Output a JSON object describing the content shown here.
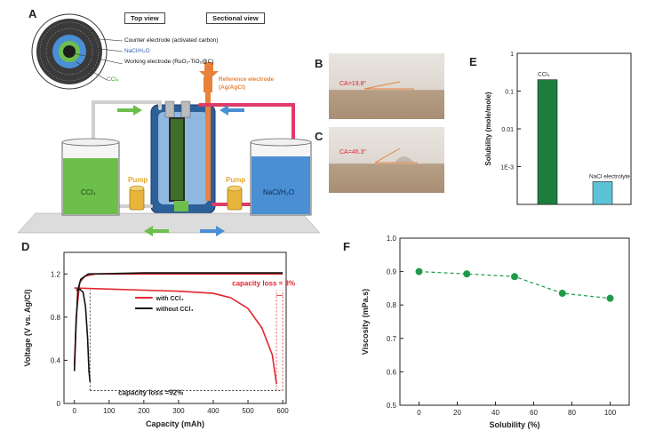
{
  "panels": {
    "A": "A",
    "B": "B",
    "C": "C",
    "D": "D",
    "E": "E",
    "F": "F"
  },
  "panel_a": {
    "top_view": "Top view",
    "sectional_view": "Sectional view",
    "counter_electrode": "Counter electrode (activated carbon)",
    "nacl_h2o": "NaCl/H₂O",
    "working_electrode": "Working electrode (RuO₂-TiO₂@C)",
    "ccl4_small": "CCl₄",
    "reference_electrode_1": "Reference electrode",
    "reference_electrode_2": "(Ag/AgCl)",
    "pump_left": "Pump",
    "pump_right": "Pump",
    "tank_left": "CCl₄",
    "tank_right": "NaCl/H₂O",
    "colors": {
      "green": "#6cbf4b",
      "blue": "#4a8fd4",
      "orange": "#e8823a",
      "pump": "#e6b53a"
    }
  },
  "panel_b": {
    "label": "CA=19.8°"
  },
  "panel_c": {
    "label": "CA=46.3°"
  },
  "chart_data": [
    {
      "id": "D",
      "type": "line",
      "xlabel": "Capacity (mAh)",
      "ylabel": "Voltage (V vs. Ag/Cl)",
      "xlim": [
        -30,
        610
      ],
      "ylim": [
        0,
        1.4
      ],
      "xticks": [
        "0",
        "100",
        "200",
        "300",
        "400",
        "500",
        "600"
      ],
      "yticks": [
        "0",
        "0.4",
        "0.8",
        "1.2"
      ],
      "legend": [
        "with CCl₄",
        "without CCl₄"
      ],
      "annotations": [
        "capacity loss = 3%",
        "capacity loss =92%"
      ],
      "series": [
        {
          "name": "with CCl₄",
          "color": "#e0262e",
          "charge": [
            [
              0,
              0.35
            ],
            [
              5,
              0.8
            ],
            [
              15,
              1.12
            ],
            [
              30,
              1.18
            ],
            [
              60,
              1.2
            ],
            [
              200,
              1.2
            ],
            [
              400,
              1.2
            ],
            [
              600,
              1.2
            ]
          ],
          "discharge": [
            [
              0,
              1.07
            ],
            [
              100,
              1.06
            ],
            [
              200,
              1.05
            ],
            [
              300,
              1.04
            ],
            [
              400,
              1.02
            ],
            [
              450,
              0.98
            ],
            [
              500,
              0.88
            ],
            [
              540,
              0.7
            ],
            [
              570,
              0.45
            ],
            [
              582,
              0.18
            ]
          ]
        },
        {
          "name": "without CCl₄",
          "color": "#111111",
          "charge": [
            [
              0,
              0.3
            ],
            [
              5,
              0.75
            ],
            [
              10,
              1.05
            ],
            [
              18,
              1.15
            ],
            [
              40,
              1.2
            ],
            [
              200,
              1.21
            ],
            [
              400,
              1.21
            ],
            [
              600,
              1.21
            ]
          ],
          "discharge": [
            [
              5,
              1.05
            ],
            [
              15,
              1.06
            ],
            [
              25,
              1.03
            ],
            [
              32,
              0.9
            ],
            [
              38,
              0.6
            ],
            [
              42,
              0.3
            ],
            [
              45,
              0.2
            ]
          ]
        }
      ]
    },
    {
      "id": "E",
      "type": "bar",
      "ylabel": "Solubility (mole/mole)",
      "yscale": "log",
      "ylim": [
        0.0001,
        1
      ],
      "yticks": [
        "1",
        "0.1",
        "0.01",
        "1E-3"
      ],
      "categories": [
        "CCl₄",
        "NaCl electrolyte"
      ],
      "values": [
        0.2,
        0.0004
      ],
      "colors": [
        "#1e7d3c",
        "#5bc3d6"
      ]
    },
    {
      "id": "F",
      "type": "line",
      "xlabel": "Solubility (%)",
      "ylabel": "Viscosity (mPa.s)",
      "xlim": [
        -10,
        110
      ],
      "ylim": [
        0.5,
        1.0
      ],
      "xticks": [
        "0",
        "20",
        "40",
        "60",
        "80",
        "100"
      ],
      "yticks": [
        "0.5",
        "0.6",
        "0.7",
        "0.8",
        "0.9",
        "1.0"
      ],
      "x": [
        0,
        25,
        50,
        75,
        100
      ],
      "y": [
        0.9,
        0.893,
        0.885,
        0.835,
        0.82
      ],
      "color": "#1f9a4a"
    }
  ]
}
